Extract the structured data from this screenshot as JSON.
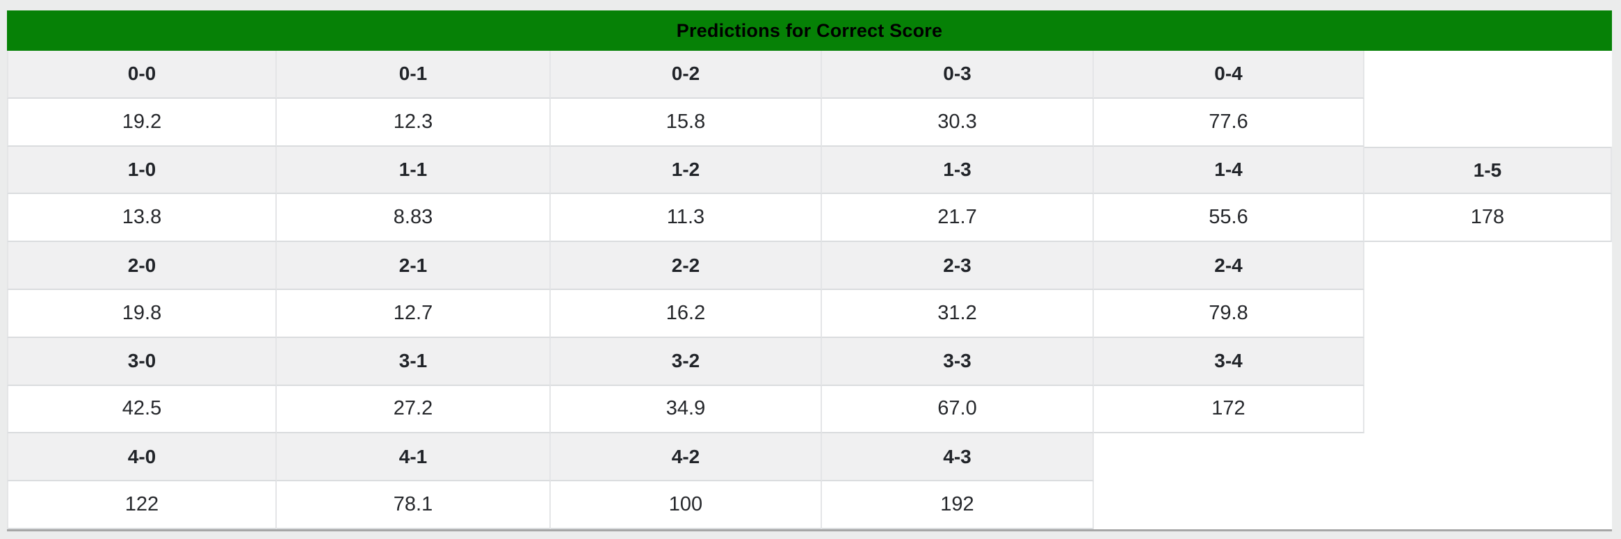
{
  "colors": {
    "page_background": "#ebecec",
    "title_bar_green": "#068106",
    "header_cell_gray": "#f0f0f1",
    "vertical_border": "#e4e5e7",
    "horizontal_border": "#dadcde",
    "card_bottom_edge": "#a6a6a6",
    "text": "#212429"
  },
  "table": {
    "title": "Predictions for Correct Score",
    "rows": [
      {
        "kind": "scores",
        "cells": [
          "0-0",
          "0-1",
          "0-2",
          "0-3",
          "0-4"
        ]
      },
      {
        "kind": "values",
        "cells": [
          "19.2",
          "12.3",
          "15.8",
          "30.3",
          "77.6"
        ]
      },
      {
        "kind": "scores",
        "cells": [
          "1-0",
          "1-1",
          "1-2",
          "1-3",
          "1-4",
          "1-5"
        ]
      },
      {
        "kind": "values",
        "cells": [
          "13.8",
          "8.83",
          "11.3",
          "21.7",
          "55.6",
          "178"
        ]
      },
      {
        "kind": "scores",
        "cells": [
          "2-0",
          "2-1",
          "2-2",
          "2-3",
          "2-4"
        ]
      },
      {
        "kind": "values",
        "cells": [
          "19.8",
          "12.7",
          "16.2",
          "31.2",
          "79.8"
        ]
      },
      {
        "kind": "scores",
        "cells": [
          "3-0",
          "3-1",
          "3-2",
          "3-3",
          "3-4"
        ]
      },
      {
        "kind": "values",
        "cells": [
          "42.5",
          "27.2",
          "34.9",
          "67.0",
          "172"
        ]
      },
      {
        "kind": "scores",
        "cells": [
          "4-0",
          "4-1",
          "4-2",
          "4-3"
        ]
      },
      {
        "kind": "values",
        "cells": [
          "122",
          "78.1",
          "100",
          "192"
        ]
      }
    ]
  }
}
